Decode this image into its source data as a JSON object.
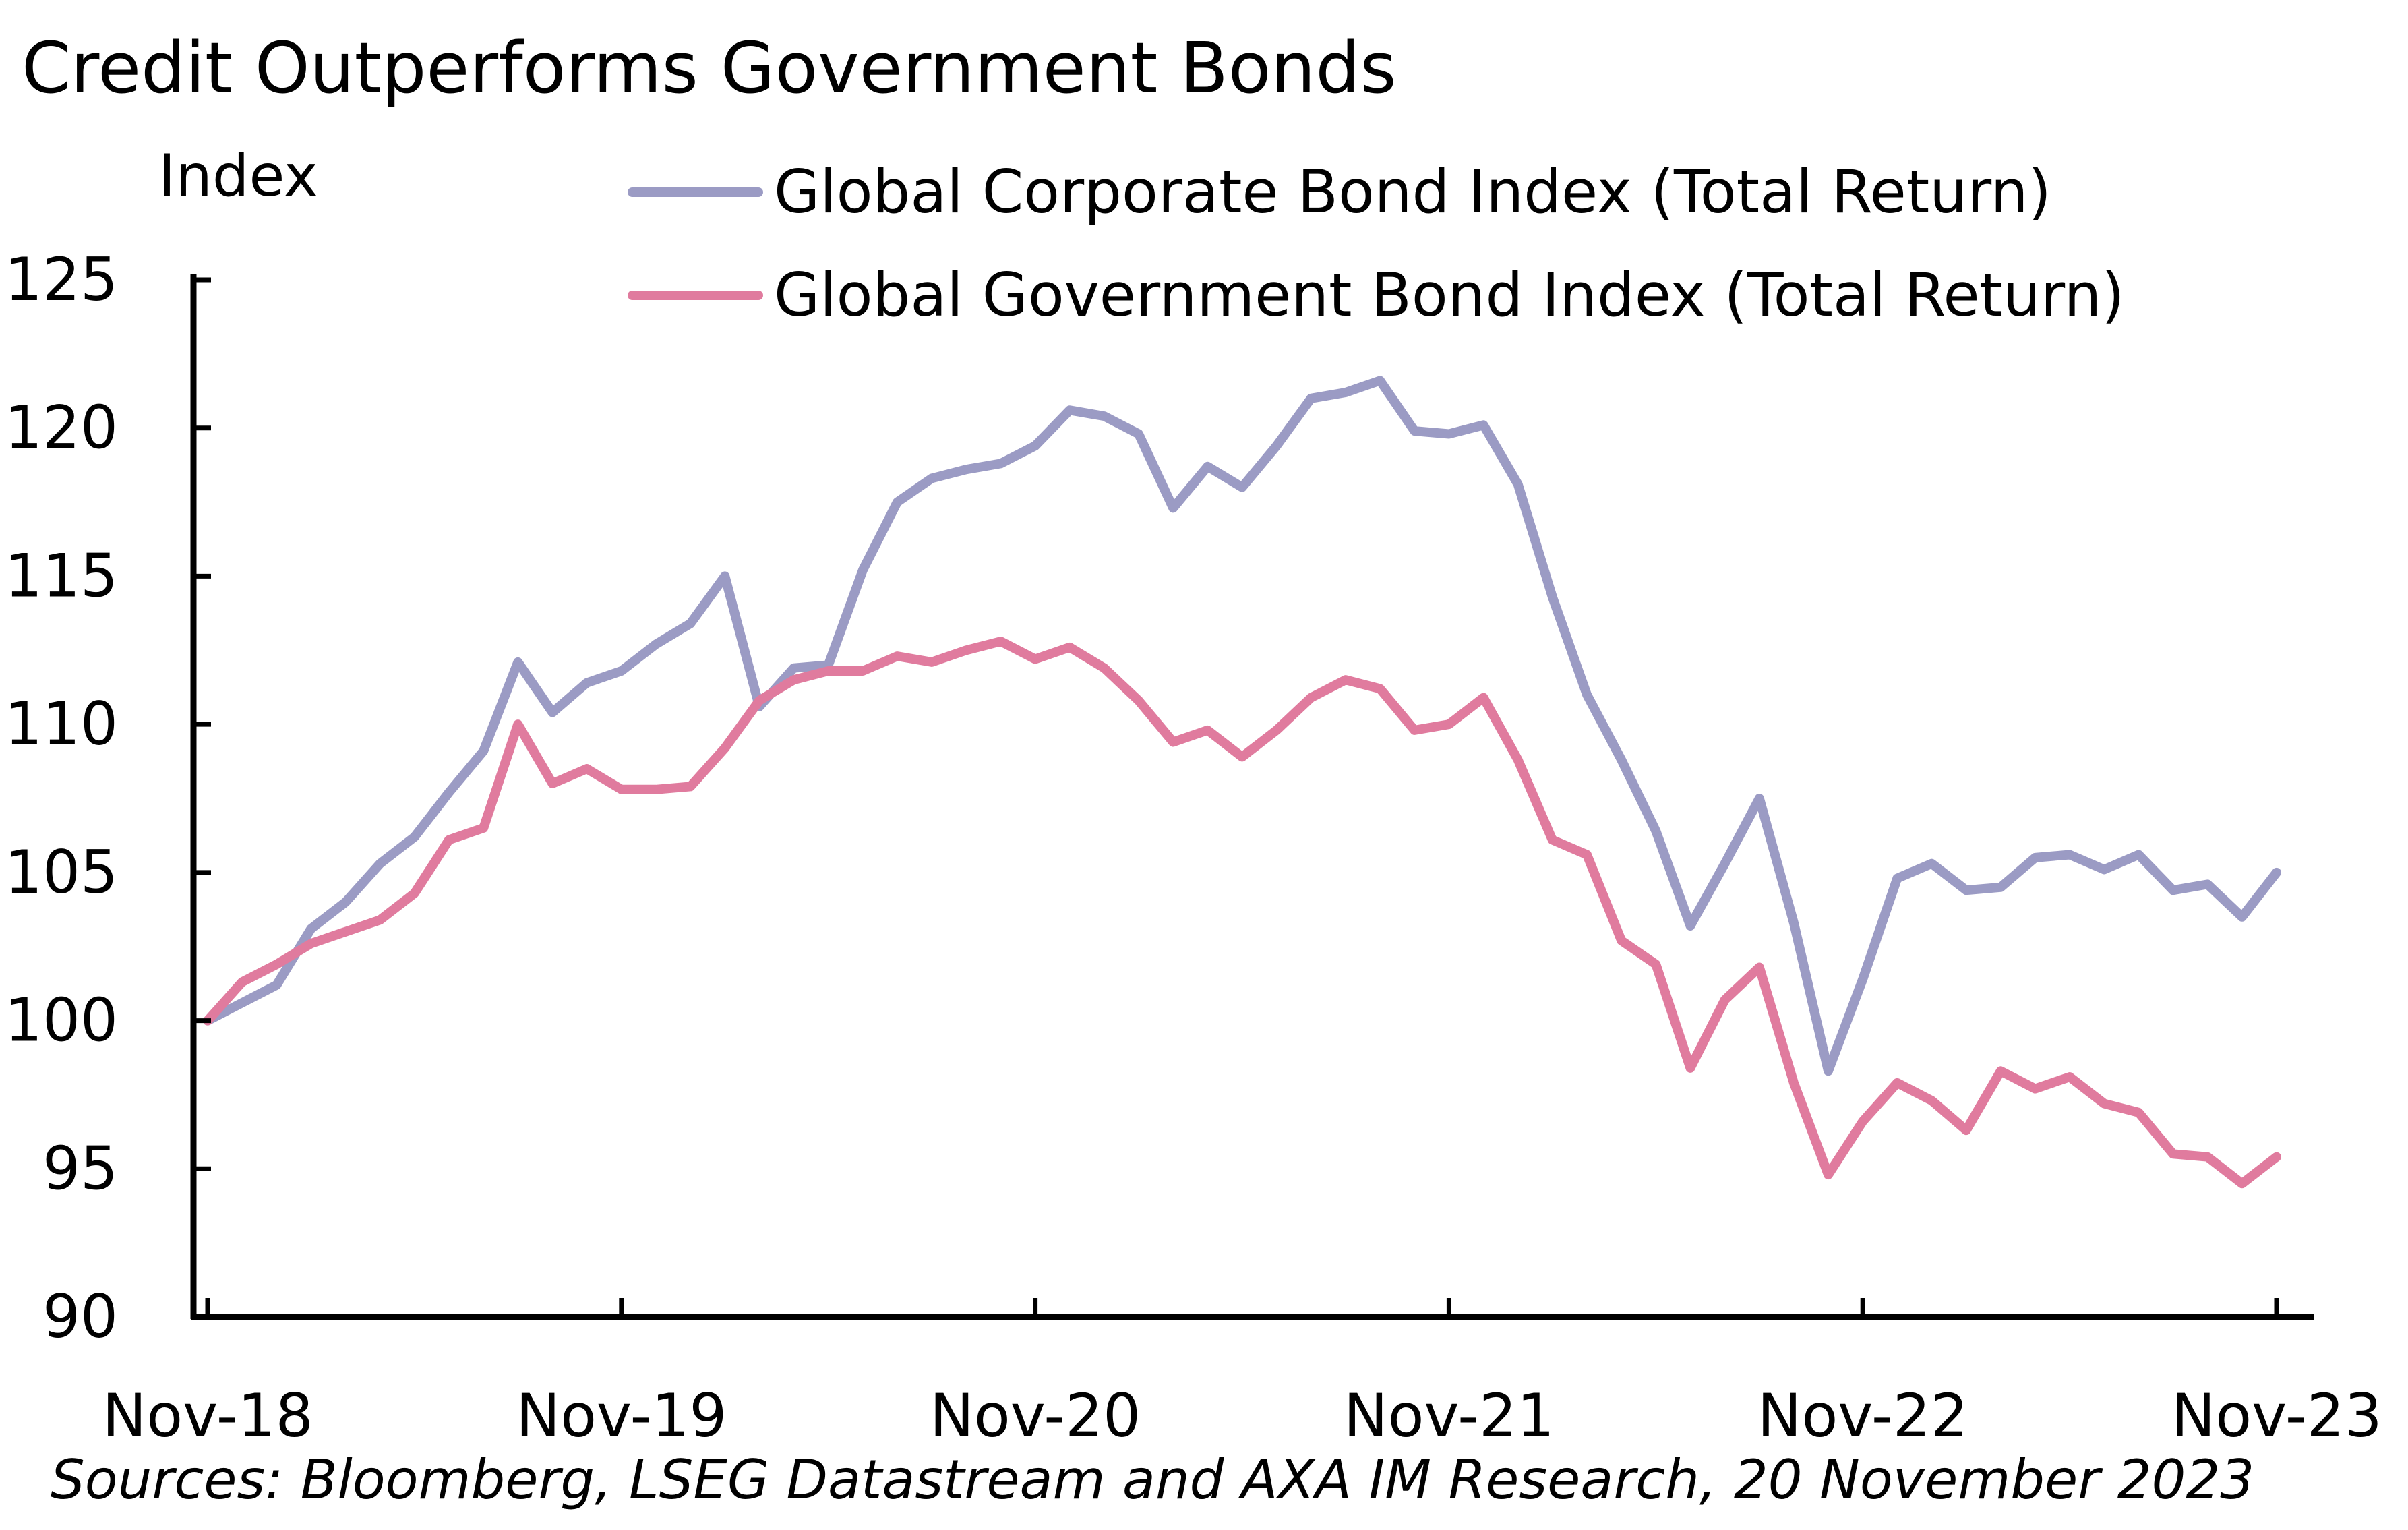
{
  "chart_data": {
    "type": "line",
    "title": "Credit Outperforms Government Bonds",
    "ylabel": "Index",
    "xlabel": "",
    "source": "Sources: Bloomberg, LSEG Datastream and AXA IM Research, 20 November 2023",
    "ylim": [
      90,
      125
    ],
    "yticks": [
      90,
      95,
      100,
      105,
      110,
      115,
      120,
      125
    ],
    "xticks": [
      "Nov-18",
      "Nov-19",
      "Nov-20",
      "Nov-21",
      "Nov-22",
      "Nov-23"
    ],
    "legend_position": "top",
    "grid": false,
    "x": [
      "Nov-18",
      "Dec-18",
      "Jan-19",
      "Feb-19",
      "Mar-19",
      "Apr-19",
      "May-19",
      "Jun-19",
      "Jul-19",
      "Aug-19",
      "Sep-19",
      "Oct-19",
      "Nov-19",
      "Dec-19",
      "Jan-20",
      "Feb-20",
      "Mar-20",
      "Apr-20",
      "May-20",
      "Jun-20",
      "Jul-20",
      "Aug-20",
      "Sep-20",
      "Oct-20",
      "Nov-20",
      "Dec-20",
      "Jan-21",
      "Feb-21",
      "Mar-21",
      "Apr-21",
      "May-21",
      "Jun-21",
      "Jul-21",
      "Aug-21",
      "Sep-21",
      "Oct-21",
      "Nov-21",
      "Dec-21",
      "Jan-22",
      "Feb-22",
      "Mar-22",
      "Apr-22",
      "May-22",
      "Jun-22",
      "Jul-22",
      "Aug-22",
      "Sep-22",
      "Oct-22",
      "Nov-22",
      "Dec-22",
      "Jan-23",
      "Feb-23",
      "Mar-23",
      "Apr-23",
      "May-23",
      "Jun-23",
      "Jul-23",
      "Aug-23",
      "Sep-23",
      "Oct-23",
      "Nov-23"
    ],
    "series": [
      {
        "name": "Global Corporate Bond Index (Total Return)",
        "color": "#9b9bc4",
        "values": [
          100.0,
          100.6,
          101.2,
          103.1,
          104.0,
          105.3,
          106.2,
          107.7,
          109.1,
          112.1,
          110.4,
          111.4,
          111.8,
          112.7,
          113.4,
          115.0,
          110.6,
          111.9,
          112.0,
          115.2,
          117.5,
          118.3,
          118.6,
          118.8,
          119.4,
          120.6,
          120.4,
          119.8,
          117.3,
          118.7,
          118.0,
          119.4,
          121.0,
          121.2,
          121.6,
          119.9,
          119.8,
          120.1,
          118.1,
          114.3,
          111.0,
          108.8,
          106.4,
          103.2,
          105.3,
          107.5,
          103.3,
          98.3,
          101.4,
          104.8,
          105.3,
          104.4,
          104.5,
          105.5,
          105.6,
          105.1,
          105.6,
          104.4,
          104.6,
          103.5,
          105.0
        ]
      },
      {
        "name": "Global Government Bond Index (Total Return)",
        "color": "#e07b9e",
        "values": [
          100.0,
          101.3,
          101.9,
          102.6,
          103.0,
          103.4,
          104.3,
          106.1,
          106.5,
          110.0,
          108.0,
          108.5,
          107.8,
          107.8,
          107.9,
          109.2,
          110.8,
          111.5,
          111.8,
          111.8,
          112.3,
          112.1,
          112.5,
          112.8,
          112.2,
          112.6,
          111.9,
          110.8,
          109.4,
          109.8,
          108.9,
          109.8,
          110.9,
          111.5,
          111.2,
          109.8,
          110.0,
          110.9,
          108.8,
          106.1,
          105.6,
          102.7,
          101.9,
          98.4,
          100.7,
          101.8,
          97.9,
          94.8,
          96.6,
          97.9,
          97.3,
          96.3,
          98.3,
          97.7,
          98.1,
          97.2,
          96.9,
          95.5,
          95.4,
          94.5,
          95.4
        ]
      }
    ]
  }
}
